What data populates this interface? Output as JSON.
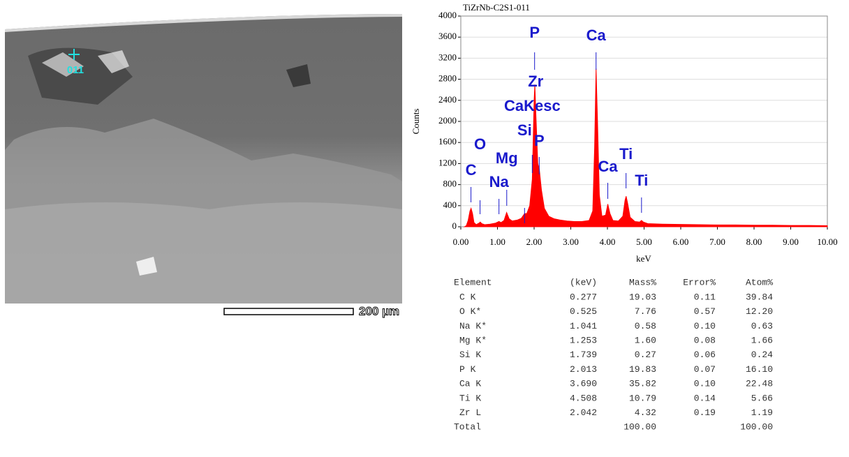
{
  "chart_data": {
    "type": "area",
    "title": "TiZrNb-C2S1-011",
    "y_label": "Counts",
    "x_label": "keV",
    "color": "#ff0000",
    "grid": true,
    "x": [
      0.1,
      0.15,
      0.2,
      0.25,
      0.28,
      0.32,
      0.36,
      0.42,
      0.5,
      0.53,
      0.57,
      0.65,
      0.8,
      0.95,
      1.04,
      1.1,
      1.18,
      1.25,
      1.32,
      1.4,
      1.55,
      1.65,
      1.74,
      1.8,
      1.88,
      1.95,
      2.0,
      2.02,
      2.05,
      2.1,
      2.14,
      2.2,
      2.28,
      2.4,
      2.55,
      2.7,
      2.9,
      3.1,
      3.3,
      3.5,
      3.6,
      3.65,
      3.69,
      3.73,
      3.78,
      3.85,
      3.95,
      4.01,
      4.07,
      4.15,
      4.3,
      4.42,
      4.48,
      4.51,
      4.55,
      4.62,
      4.75,
      4.88,
      4.93,
      4.98,
      5.1,
      5.5,
      6.0,
      6.5,
      7.0,
      7.5,
      8.0,
      8.5,
      9.0,
      9.5,
      10.0
    ],
    "values": [
      0,
      20,
      120,
      300,
      350,
      250,
      80,
      40,
      70,
      90,
      60,
      40,
      50,
      70,
      100,
      80,
      120,
      270,
      150,
      110,
      130,
      160,
      250,
      250,
      400,
      900,
      2400,
      2700,
      2100,
      1200,
      1100,
      700,
      350,
      200,
      150,
      130,
      110,
      100,
      100,
      120,
      300,
      1500,
      3000,
      2000,
      600,
      200,
      220,
      430,
      250,
      120,
      110,
      200,
      500,
      580,
      450,
      180,
      100,
      90,
      120,
      90,
      60,
      50,
      45,
      40,
      35,
      35,
      30,
      30,
      25,
      25,
      20
    ],
    "xlim": [
      0,
      10
    ],
    "ylim": [
      0,
      4000
    ],
    "xticks": [
      {
        "value": 0,
        "label": "0.00"
      },
      {
        "value": 1,
        "label": "1.00"
      },
      {
        "value": 2,
        "label": "2.00"
      },
      {
        "value": 3,
        "label": "3.00"
      },
      {
        "value": 4,
        "label": "4.00"
      },
      {
        "value": 5,
        "label": "5.00"
      },
      {
        "value": 6,
        "label": "6.00"
      },
      {
        "value": 7,
        "label": "7.00"
      },
      {
        "value": 8,
        "label": "8.00"
      },
      {
        "value": 9,
        "label": "9.00"
      },
      {
        "value": 10,
        "label": "10.00"
      }
    ],
    "yticks": [
      0,
      400,
      800,
      1200,
      1600,
      2000,
      2400,
      2800,
      3200,
      3600,
      4000
    ],
    "annotations": [
      {
        "text": "C",
        "x": 0.277
      },
      {
        "text": "O",
        "x": 0.525
      },
      {
        "text": "Na",
        "x": 1.041
      },
      {
        "text": "Mg",
        "x": 1.253
      },
      {
        "text": "Si",
        "x": 1.739
      },
      {
        "text": "P",
        "x": 2.013
      },
      {
        "text": "Zr",
        "x": 2.042
      },
      {
        "text": "CaKesc",
        "x": 1.95
      },
      {
        "text": "P",
        "x": 2.14
      },
      {
        "text": "Ca",
        "x": 3.69
      },
      {
        "text": "Ca",
        "x": 4.01
      },
      {
        "text": "Ti",
        "x": 4.508
      },
      {
        "text": "Ti",
        "x": 4.93
      }
    ]
  },
  "image": {
    "point_label": "011",
    "scale_label": "200 µm"
  },
  "table": {
    "header": [
      "Element",
      "(keV)",
      "Mass%",
      "Error%",
      "Atom%"
    ],
    "rows": [
      [
        "C K",
        "0.277",
        "19.03",
        "0.11",
        "39.84"
      ],
      [
        "O K*",
        "0.525",
        "7.76",
        "0.57",
        "12.20"
      ],
      [
        "Na K*",
        "1.041",
        "0.58",
        "0.10",
        "0.63"
      ],
      [
        "Mg K*",
        "1.253",
        "1.60",
        "0.08",
        "1.66"
      ],
      [
        "Si K",
        "1.739",
        "0.27",
        "0.06",
        "0.24"
      ],
      [
        "P K",
        "2.013",
        "19.83",
        "0.07",
        "16.10"
      ],
      [
        "Ca K",
        "3.690",
        "35.82",
        "0.10",
        "22.48"
      ],
      [
        "Ti K",
        "4.508",
        "10.79",
        "0.14",
        "5.66"
      ],
      [
        "Zr L",
        "2.042",
        "4.32",
        "0.19",
        "1.19"
      ]
    ],
    "total": {
      "label": "Total",
      "mass": "100.00",
      "atom": "100.00"
    }
  }
}
